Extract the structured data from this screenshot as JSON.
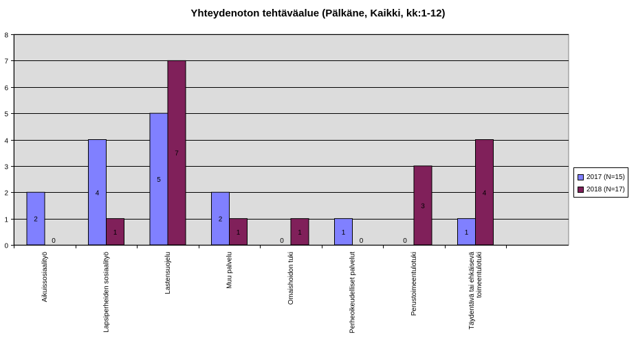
{
  "chart_data": {
    "type": "bar",
    "title": "Yhteydenoton tehtäväalue (Pälkäne, Kaikki, kk:1-12)",
    "categories": [
      [
        "Aikuissosiaalityö"
      ],
      [
        "Lapsiperheiden sosiaalityö"
      ],
      [
        "Lastensuojelu"
      ],
      [
        "Muu palvelu"
      ],
      [
        "Omaishoidon tuki"
      ],
      [
        "Perheoikeudelliset palvelut"
      ],
      [
        "Perustoimeentulotuki"
      ],
      [
        "Täydentävä tai ehkäisevä",
        "toimeentulotuki"
      ]
    ],
    "series": [
      {
        "name": "2017 (N=15)",
        "color": "#8080ff",
        "values": [
          2,
          4,
          5,
          2,
          0,
          1,
          0,
          1
        ]
      },
      {
        "name": "2018 (N=17)",
        "color": "#80205a",
        "values": [
          0,
          1,
          7,
          1,
          1,
          0,
          3,
          4
        ]
      }
    ],
    "ylim": [
      0,
      8
    ],
    "yticks": [
      "0",
      "1",
      "2",
      "3",
      "4",
      "5",
      "6",
      "7",
      "8"
    ],
    "plot_background": "#dcdcdc",
    "grid": true,
    "legend_position": "right"
  }
}
